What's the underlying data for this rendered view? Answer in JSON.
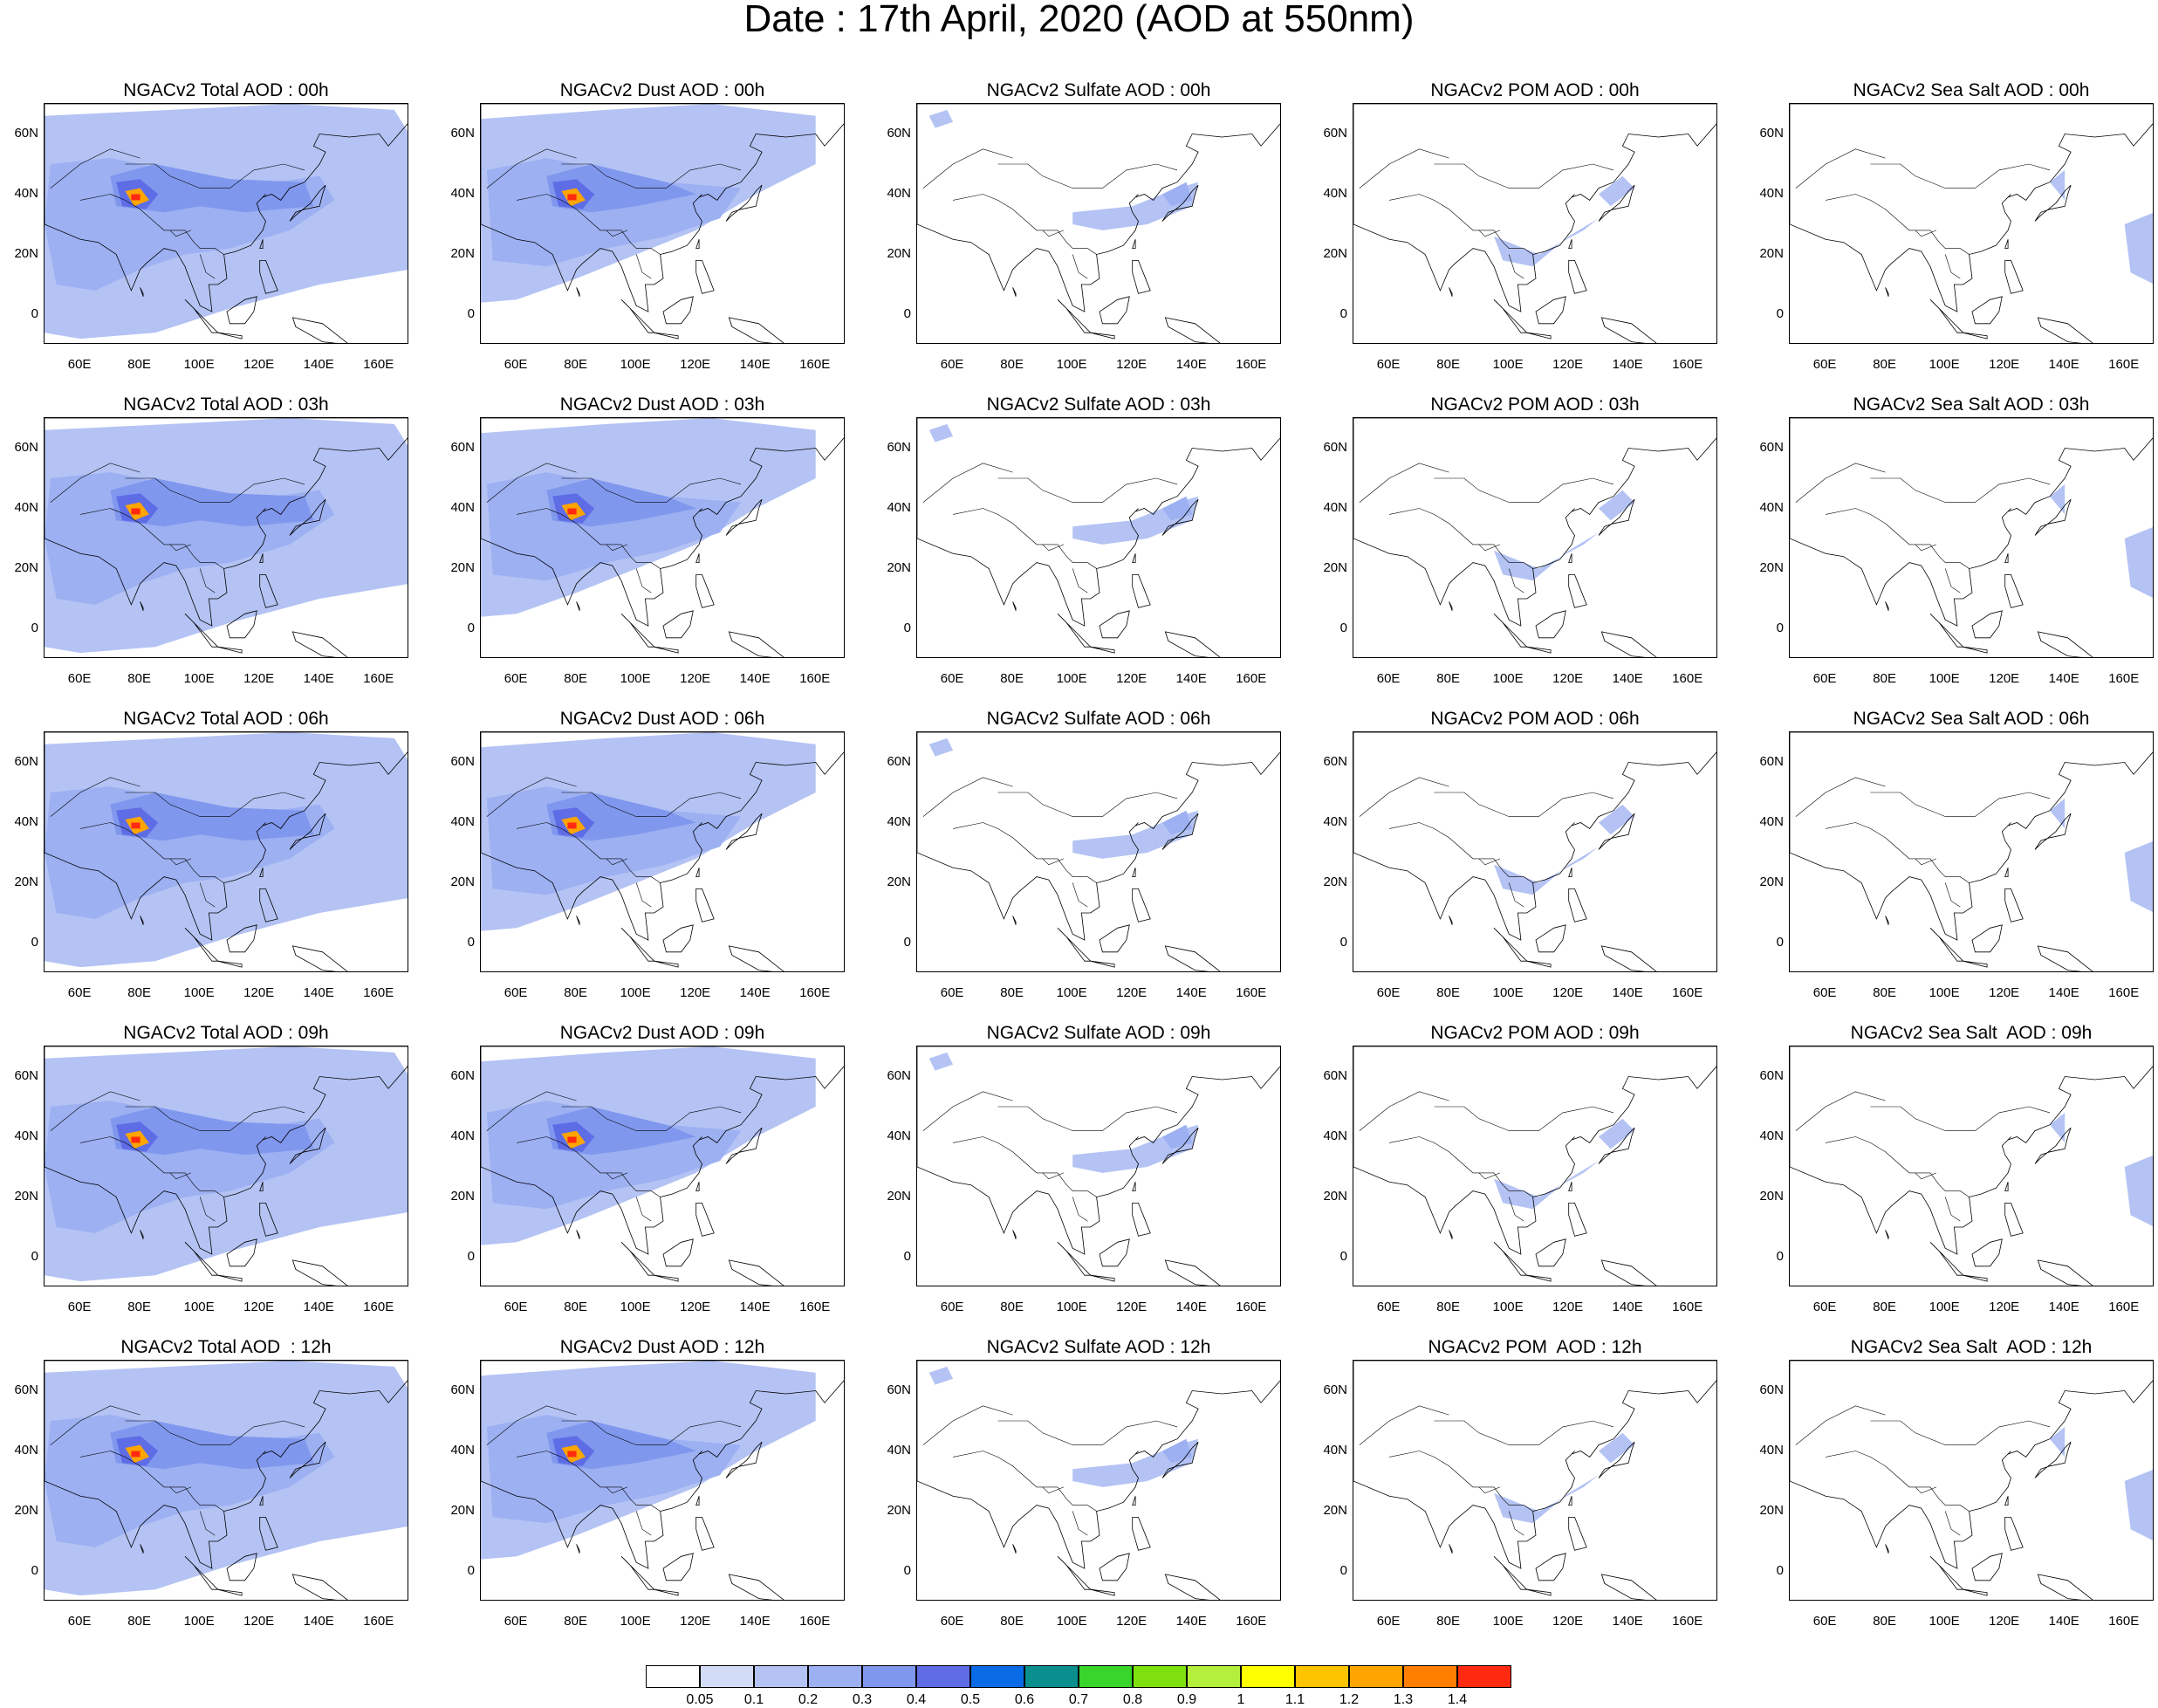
{
  "title": "Date : 17th April, 2020 (AOD at 550nm)",
  "axes": {
    "lat_labels": [
      "60N",
      "40N",
      "20N",
      "0"
    ],
    "lat_values": [
      60,
      40,
      20,
      0
    ],
    "lon_labels": [
      "60E",
      "80E",
      "100E",
      "120E",
      "140E",
      "160E"
    ],
    "lon_values": [
      60,
      80,
      100,
      120,
      140,
      160
    ],
    "lon_range": [
      48,
      170
    ],
    "lat_range": [
      -10,
      70
    ]
  },
  "panels": [
    [
      "NGACv2 Total AOD : 00h",
      "NGACv2 Dust AOD : 00h",
      "NGACv2 Sulfate AOD : 00h",
      "NGACv2 POM AOD : 00h",
      "NGACv2 Sea Salt AOD : 00h"
    ],
    [
      "NGACv2 Total AOD : 03h",
      "NGACv2 Dust AOD : 03h",
      "NGACv2 Sulfate AOD : 03h",
      "NGACv2 POM AOD : 03h",
      "NGACv2 Sea Salt AOD : 03h"
    ],
    [
      "NGACv2 Total AOD : 06h",
      "NGACv2 Dust AOD : 06h",
      "NGACv2 Sulfate AOD : 06h",
      "NGACv2 POM AOD : 06h",
      "NGACv2 Sea Salt AOD : 06h"
    ],
    [
      "NGACv2 Total AOD : 09h",
      "NGACv2 Dust AOD : 09h",
      "NGACv2 Sulfate AOD : 09h",
      "NGACv2 POM AOD : 09h",
      "NGACv2 Sea Salt  AOD : 09h"
    ],
    [
      "NGACv2 Total AOD  : 12h",
      "NGACv2 Dust AOD : 12h",
      "NGACv2 Sulfate AOD : 12h",
      "NGACv2 POM  AOD : 12h",
      "NGACv2 Sea Salt  AOD : 12h"
    ]
  ],
  "field_types": [
    "total",
    "dust",
    "sulfate",
    "pom",
    "seasalt"
  ],
  "colorbar": {
    "labels": [
      "0.05",
      "0.1",
      "0.2",
      "0.3",
      "0.4",
      "0.5",
      "0.6",
      "0.7",
      "0.8",
      "0.9",
      "1",
      "1.1",
      "1.2",
      "1.3",
      "1.4"
    ],
    "colors": [
      "#ffffff",
      "#d3dcf7",
      "#b4c3f4",
      "#9cb0f2",
      "#8097ee",
      "#5e6de6",
      "#0a6be6",
      "#0a8e8e",
      "#38d62a",
      "#7ee10d",
      "#b4ef3c",
      "#ffff00",
      "#ffc400",
      "#ffa500",
      "#ff7e00",
      "#ff2a10"
    ]
  }
}
